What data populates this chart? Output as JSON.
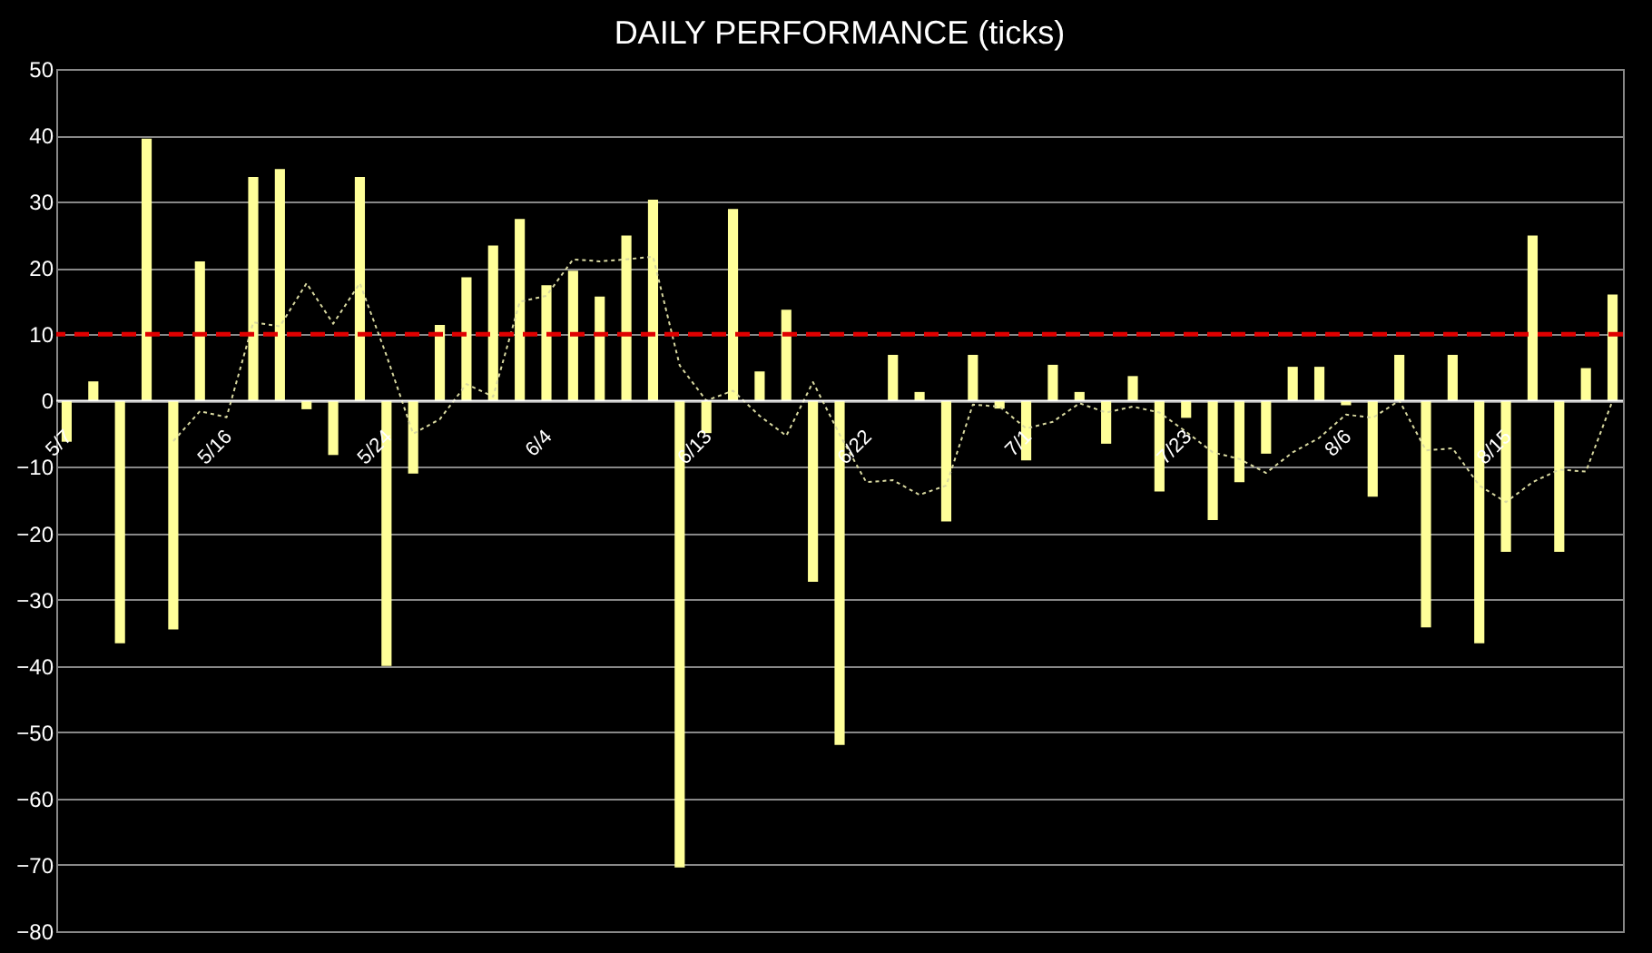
{
  "chart_data": {
    "type": "bar",
    "title": "DAILY PERFORMANCE (ticks)",
    "categories": [
      "5/7",
      null,
      null,
      null,
      null,
      null,
      "5/16",
      null,
      null,
      null,
      null,
      null,
      "5/24",
      null,
      null,
      null,
      null,
      null,
      "6/4",
      null,
      null,
      null,
      null,
      null,
      "6/13",
      null,
      null,
      null,
      null,
      null,
      "6/22",
      null,
      null,
      null,
      null,
      null,
      "7/1",
      null,
      null,
      null,
      null,
      null,
      "7/23",
      null,
      null,
      null,
      null,
      null,
      "8/6",
      null,
      null,
      null,
      null,
      null,
      "8/15",
      null,
      null,
      null,
      null
    ],
    "series": [
      {
        "color": "#ffff99",
        "values": [
          -6.2,
          2.9,
          -36.6,
          39.5,
          -34.5,
          21,
          0,
          33.7,
          34.9,
          -1.3,
          -8.2,
          33.7,
          -40,
          -11,
          11.4,
          18.6,
          23.4,
          27.4,
          17.4,
          19.6,
          15.7,
          24.9,
          30.3,
          -70.4,
          -4.9,
          28.9,
          4.4,
          13.7,
          -27.3,
          -51.9,
          0,
          6.9,
          1.3,
          -18.2,
          6.9,
          -1.2,
          -9,
          5.4,
          1.3,
          -6.5,
          3.7,
          -13.7,
          -2.6,
          -18,
          -12.3,
          -8,
          5.1,
          5.1,
          -0.7,
          -14.5,
          6.9,
          -34.2,
          6.9,
          -36.6,
          -22.8,
          24.9,
          -22.8,
          4.9,
          16
        ]
      },
      {
        "type": "line",
        "color": "#d8d8a0",
        "line_style": "dotted",
        "values": [
          null,
          null,
          null,
          null,
          -6.1,
          -1.6,
          -2.5,
          11.8,
          11.2,
          17.7,
          11.6,
          17.7,
          6.8,
          -5,
          -2.8,
          2.5,
          0.6,
          14.9,
          15.8,
          21.3,
          21,
          21.3,
          21.7,
          5.3,
          0,
          1.5,
          -2.3,
          -5.3,
          2.8,
          -5.1,
          -12.3,
          -12,
          -14.2,
          -12.8,
          -0.6,
          -0.9,
          -4.2,
          -3.2,
          -0.4,
          -1.8,
          -0.9,
          -1.8,
          -4.7,
          -7.8,
          -8.8,
          -10.9,
          -7.8,
          -5.6,
          -2.1,
          -2.6,
          0,
          -7.5,
          -7.2,
          -12.8,
          -15.3,
          -12.3,
          -10.4,
          -10.7,
          0
        ]
      }
    ],
    "ref_lines": [
      {
        "axis": "y",
        "value": 10,
        "color": "#e00000",
        "line_style": "dashed"
      }
    ],
    "ylim": [
      -80,
      50
    ],
    "yticks": [
      -80,
      -70,
      -60,
      -50,
      -40,
      -30,
      -20,
      -10,
      0,
      10,
      20,
      30,
      40,
      50
    ],
    "grid": "y"
  }
}
